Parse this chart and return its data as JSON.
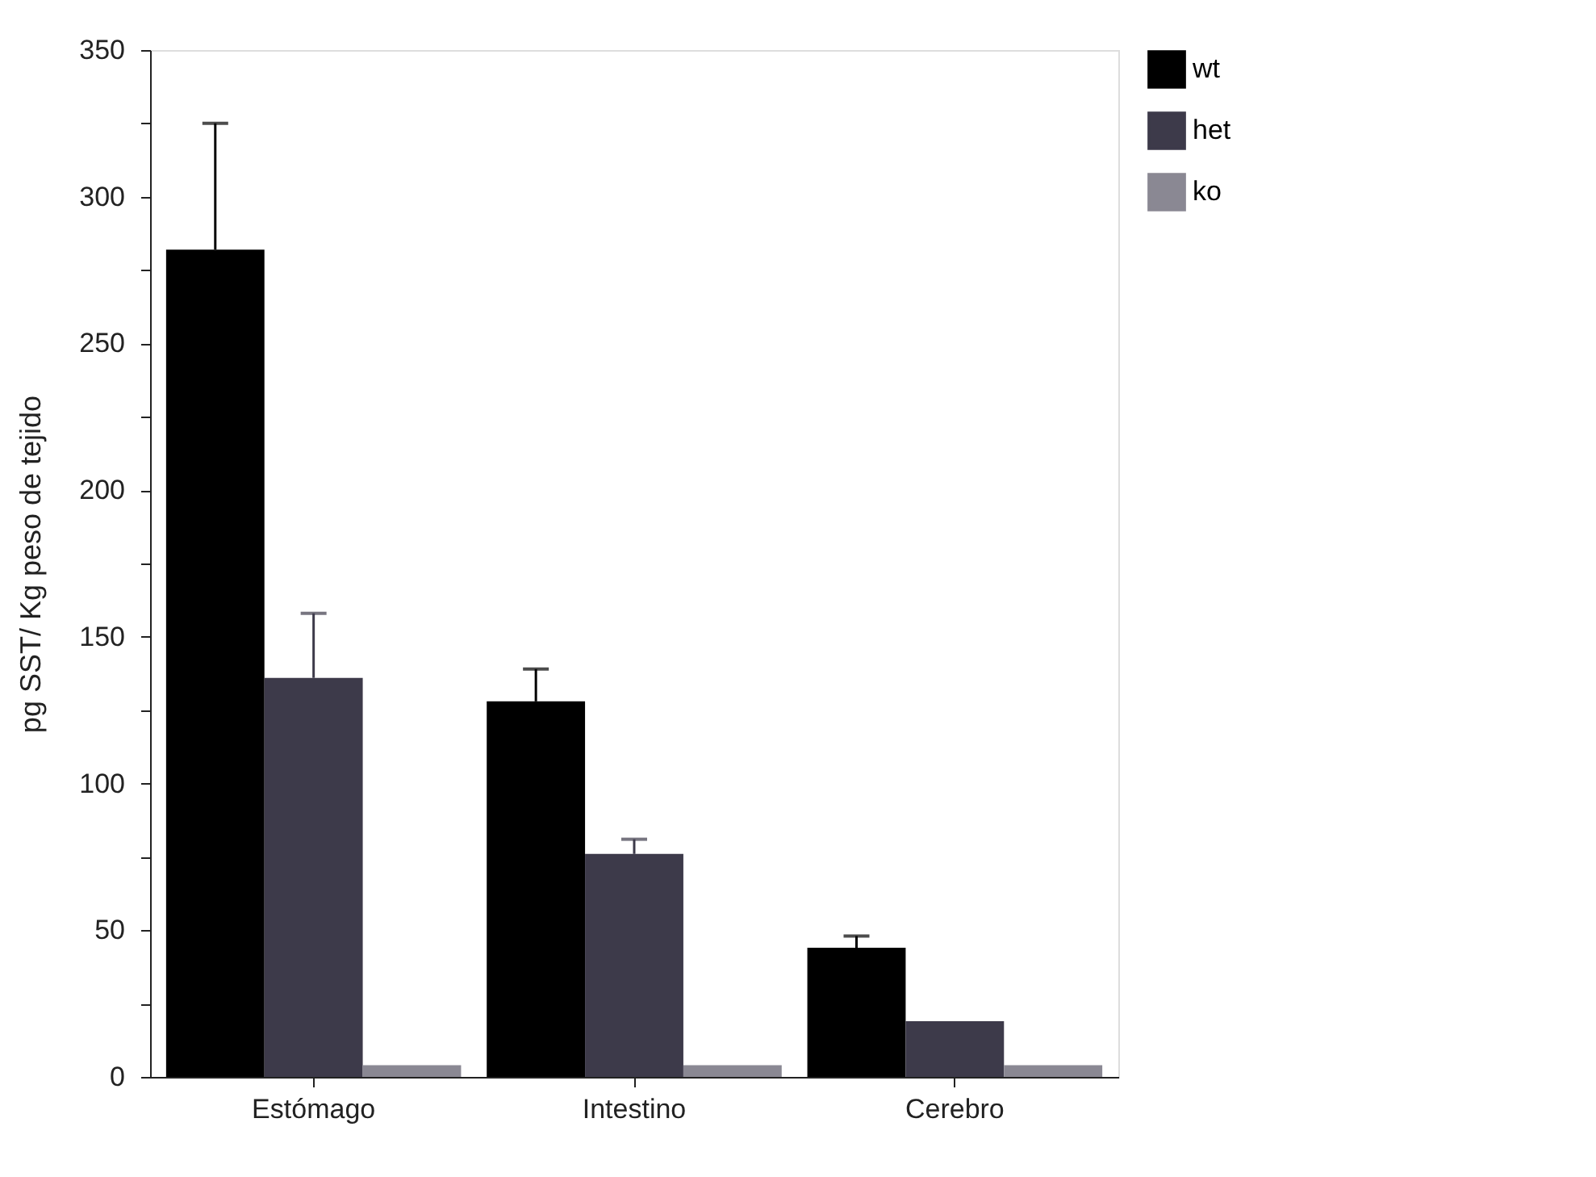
{
  "chart_data": {
    "type": "bar",
    "ylabel": "pg SST/ Kg peso de tejido",
    "categories": [
      "Estómago",
      "Intestino",
      "Cerebro"
    ],
    "series": [
      {
        "name": "wt",
        "color": "#000000",
        "values": [
          282,
          128,
          44
        ],
        "errors": [
          [
            282,
            325
          ],
          [
            128,
            139
          ],
          [
            44,
            48
          ]
        ]
      },
      {
        "name": "het",
        "color": "#3d3a4a",
        "values": [
          136,
          76,
          19
        ],
        "errors": [
          [
            136,
            158
          ],
          [
            76,
            81
          ],
          null
        ]
      },
      {
        "name": "ko",
        "color": "#8a8893",
        "values": [
          4,
          4,
          4
        ]
      }
    ],
    "ylim": [
      0,
      350
    ],
    "yticks": [
      0,
      {
        "value": 25,
        "label": null
      },
      50,
      {
        "value": 75,
        "label": null
      },
      100,
      {
        "value": 125,
        "label": null
      },
      150,
      {
        "value": 175,
        "label": null
      },
      200,
      {
        "value": 225,
        "label": null
      },
      250,
      {
        "value": 275,
        "label": null
      },
      300,
      {
        "value": 325,
        "label": null
      },
      350
    ],
    "legend": "right",
    "grid": false
  }
}
